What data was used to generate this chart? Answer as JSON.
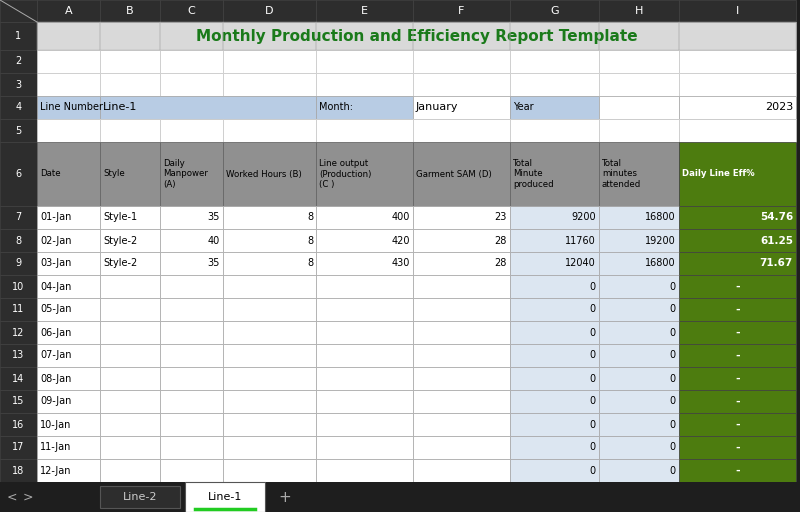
{
  "title": "Monthly Production and Efficiency Report Template",
  "title_color": "#1a7a1a",
  "title_fontsize": 11,
  "col_header_bg": "#2d2d2d",
  "col_header_fg": "#ffffff",
  "col_letters": [
    "A",
    "B",
    "C",
    "D",
    "E",
    "F",
    "G",
    "H",
    "I"
  ],
  "row_numbers": [
    "1",
    "2",
    "3",
    "4",
    "5",
    "6",
    "7",
    "8",
    "9",
    "10",
    "11",
    "12",
    "13",
    "14",
    "15",
    "16",
    "17",
    "18"
  ],
  "row1_bg": "#d9d9d9",
  "row4_label_bg": "#b8cce4",
  "header_bg": "#909090",
  "green_col_bg": "#4d7c0f",
  "green_col_fg": "#ffffff",
  "light_blue_bg": "#dce6f1",
  "white_bg": "#ffffff",
  "dark_bg": "#2d2d2d",
  "tab_bar_bg": "#1e1e1e",
  "tab_active": "Line-1",
  "tab_inactive": "Line-2",
  "tab_active_bg": "#ffffff",
  "tab_inactive_bg": "#2d2d2d",
  "tab_active_fg": "#000000",
  "tab_inactive_fg": "#cccccc",
  "nav_fg": "#aaaaaa",
  "data_rows": [
    {
      "date": "01-Jan",
      "style": "Style-1",
      "manpower": 35,
      "hours": 8,
      "output": 400,
      "sam": 23,
      "min_prod": 9200,
      "min_att": 16800,
      "eff": "54.76"
    },
    {
      "date": "02-Jan",
      "style": "Style-2",
      "manpower": 40,
      "hours": 8,
      "output": 420,
      "sam": 28,
      "min_prod": 11760,
      "min_att": 19200,
      "eff": "61.25"
    },
    {
      "date": "03-Jan",
      "style": "Style-2",
      "manpower": 35,
      "hours": 8,
      "output": 430,
      "sam": 28,
      "min_prod": 12040,
      "min_att": 16800,
      "eff": "71.67"
    }
  ],
  "empty_rows_dates": [
    "04-Jan",
    "05-Jan",
    "06-Jan",
    "07-Jan",
    "08-Jan",
    "09-Jan",
    "10-Jan",
    "11-Jan",
    "12-Jan"
  ]
}
